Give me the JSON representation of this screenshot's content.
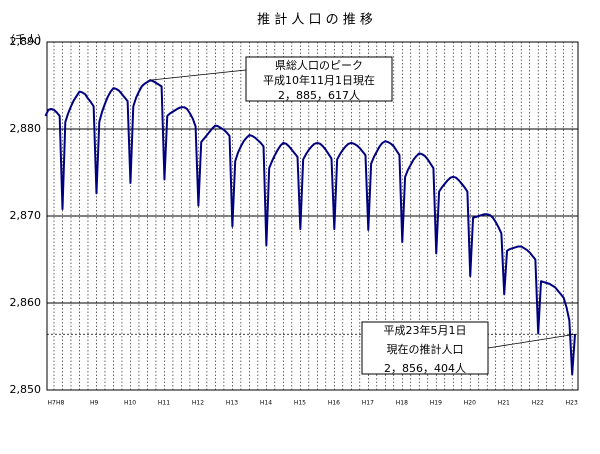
{
  "chart_data": {
    "type": "line",
    "title": "推 計 人 口 の 推 移",
    "y_unit": "（千人）",
    "ylim": [
      2850,
      2890
    ],
    "yticks": [
      {
        "value": 2850,
        "label": "2,850"
      },
      {
        "value": 2860,
        "label": "2,860"
      },
      {
        "value": 2870,
        "label": "2,870"
      },
      {
        "value": 2880,
        "label": "2,880"
      },
      {
        "value": 2890,
        "label": "2,890"
      }
    ],
    "grid": true,
    "categories": [
      "H7",
      null,
      null,
      "H8",
      null,
      null,
      null,
      null,
      null,
      null,
      null,
      null,
      null,
      null,
      null,
      "H9",
      null,
      null,
      null,
      null,
      null,
      null,
      null,
      null,
      null,
      null,
      null,
      "H10",
      null,
      null,
      null,
      null,
      null,
      null,
      null,
      null,
      null,
      null,
      null,
      "H11",
      null,
      null,
      null,
      null,
      null,
      null,
      null,
      null,
      null,
      null,
      null,
      "H12",
      null,
      null,
      null,
      null,
      null,
      null,
      null,
      null,
      null,
      null,
      null,
      "H13",
      null,
      null,
      null,
      null,
      null,
      null,
      null,
      null,
      null,
      null,
      null,
      "H14",
      null,
      null,
      null,
      null,
      null,
      null,
      null,
      null,
      null,
      null,
      null,
      "H15",
      null,
      null,
      null,
      null,
      null,
      null,
      null,
      null,
      null,
      null,
      null,
      "H16",
      null,
      null,
      null,
      null,
      null,
      null,
      null,
      null,
      null,
      null,
      null,
      "H17",
      null,
      null,
      null,
      null,
      null,
      null,
      null,
      null,
      null,
      null,
      null,
      "H18",
      null,
      null,
      null,
      null,
      null,
      null,
      null,
      null,
      null,
      null,
      null,
      "H19",
      null,
      null,
      null,
      null,
      null,
      null,
      null,
      null,
      null,
      null,
      null,
      "H20",
      null,
      null,
      null,
      null,
      null,
      null,
      null,
      null,
      null,
      null,
      null,
      "H21",
      null,
      null,
      null,
      null,
      null,
      null,
      null,
      null,
      null,
      null,
      null,
      "H22",
      null,
      null,
      null,
      null,
      null,
      null,
      null,
      null,
      null,
      null,
      null,
      "H23",
      null,
      null,
      null,
      null
    ],
    "series": [
      {
        "color": "#000080",
        "values": [
          2881.5,
          2882.2,
          2882.3,
          2882.2,
          2881.9,
          2881.5,
          2870.8,
          2880.8,
          2881.8,
          2882.6,
          2883.3,
          2883.8,
          2884.3,
          2884.2,
          2884.0,
          2883.5,
          2883.1,
          2882.6,
          2872.6,
          2880.8,
          2882.0,
          2882.9,
          2883.7,
          2884.3,
          2884.7,
          2884.6,
          2884.4,
          2884.0,
          2883.6,
          2883.2,
          2873.8,
          2882.6,
          2883.6,
          2884.3,
          2884.9,
          2885.2,
          2885.4,
          2885.617,
          2885.5,
          2885.3,
          2885.1,
          2884.9,
          2874.2,
          2881.5,
          2881.8,
          2882.0,
          2882.2,
          2882.4,
          2882.5,
          2882.5,
          2882.3,
          2881.8,
          2881.2,
          2880.3,
          2871.2,
          2878.5,
          2878.9,
          2879.3,
          2879.7,
          2880.1,
          2880.4,
          2880.3,
          2880.1,
          2879.9,
          2879.6,
          2879.2,
          2868.8,
          2876.3,
          2877.3,
          2878.0,
          2878.6,
          2879.0,
          2879.3,
          2879.2,
          2879.0,
          2878.7,
          2878.4,
          2878.0,
          2866.6,
          2875.5,
          2876.3,
          2877.0,
          2877.6,
          2878.1,
          2878.4,
          2878.3,
          2878.0,
          2877.6,
          2877.2,
          2876.8,
          2868.5,
          2876.5,
          2877.1,
          2877.6,
          2878.0,
          2878.3,
          2878.4,
          2878.3,
          2878.0,
          2877.6,
          2877.1,
          2876.6,
          2868.5,
          2876.5,
          2877.1,
          2877.6,
          2878.0,
          2878.3,
          2878.4,
          2878.3,
          2878.1,
          2877.8,
          2877.4,
          2877.0,
          2868.4,
          2876.0,
          2876.8,
          2877.4,
          2878.0,
          2878.4,
          2878.6,
          2878.5,
          2878.3,
          2878.0,
          2877.5,
          2877.0,
          2867.0,
          2874.5,
          2875.3,
          2875.9,
          2876.5,
          2876.9,
          2877.2,
          2877.1,
          2876.9,
          2876.5,
          2876.0,
          2875.5,
          2865.7,
          2872.8,
          2873.3,
          2873.7,
          2874.1,
          2874.4,
          2874.5,
          2874.4,
          2874.1,
          2873.7,
          2873.3,
          2872.8,
          2863.1,
          2869.8,
          2869.9,
          2870.0,
          2870.1,
          2870.2,
          2870.2,
          2870.1,
          2869.8,
          2869.3,
          2868.7,
          2868.0,
          2861.0,
          2866.0,
          2866.2,
          2866.3,
          2866.4,
          2866.5,
          2866.5,
          2866.3,
          2866.1,
          2865.8,
          2865.4,
          2865.0,
          2856.5,
          2862.5,
          2862.4,
          2862.3,
          2862.2,
          2862.0,
          2861.8,
          2861.4,
          2861.0,
          2860.6,
          2859.5,
          2858.0,
          2851.8,
          2856.404
        ]
      }
    ],
    "annotations": [
      {
        "lines": [
          "県総人口のピーク",
          "平成10年11月1日現在",
          "2，885，617人"
        ]
      },
      {
        "lines": [
          "平成23年5月1日",
          "現在の推計人口",
          "2，856，404人"
        ]
      }
    ]
  }
}
